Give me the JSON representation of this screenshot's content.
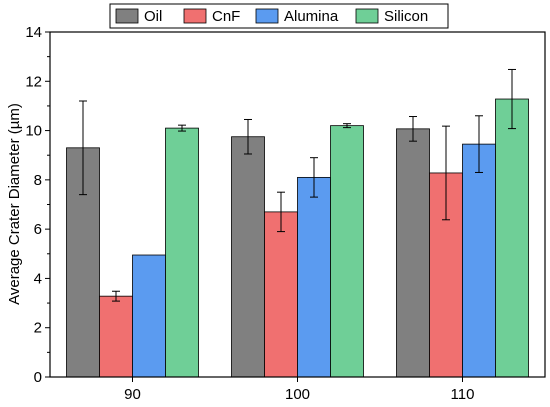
{
  "chart_data": {
    "type": "bar",
    "categories": [
      "90",
      "100",
      "110"
    ],
    "series": [
      {
        "name": "Oil",
        "color": "#808080",
        "values": [
          9.3,
          9.75,
          10.07
        ],
        "errors": [
          1.9,
          0.7,
          0.5
        ]
      },
      {
        "name": "CnF",
        "color": "#f07070",
        "values": [
          3.28,
          6.7,
          8.28
        ],
        "errors": [
          0.2,
          0.8,
          1.9
        ]
      },
      {
        "name": "Alumina",
        "color": "#5b9bf0",
        "values": [
          4.95,
          8.1,
          9.45
        ],
        "errors": [
          0,
          0.8,
          1.15
        ]
      },
      {
        "name": "Silicon",
        "color": "#6fcf97",
        "values": [
          10.1,
          10.2,
          11.28
        ],
        "errors": [
          0.12,
          0.08,
          1.2
        ]
      }
    ],
    "title": "",
    "xlabel": "",
    "ylabel": "Average Crater Diameter (µm)",
    "ylim": [
      0,
      14
    ],
    "yticks": [
      "0",
      "2",
      "4",
      "6",
      "8",
      "10",
      "12",
      "14"
    ],
    "grid": false,
    "legend": "top"
  }
}
